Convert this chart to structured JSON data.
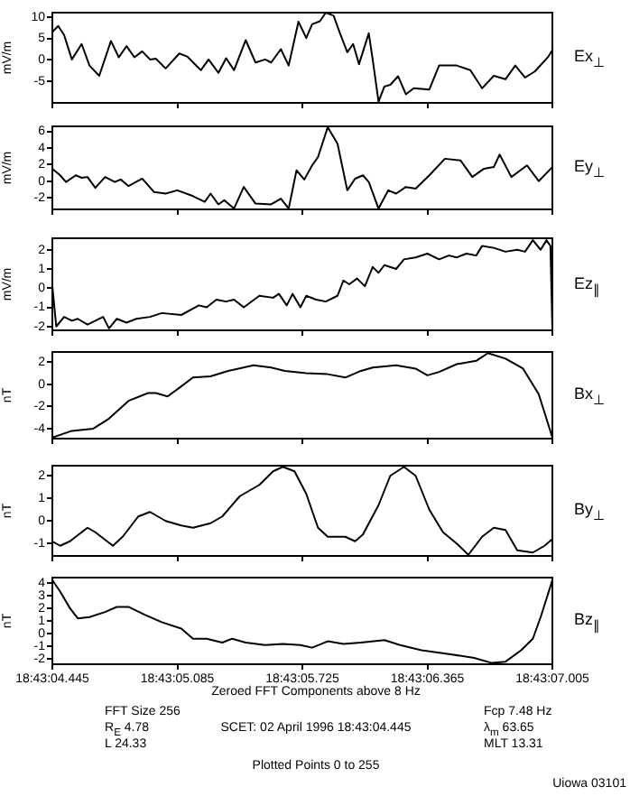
{
  "chart_data": [
    {
      "type": "line",
      "ylabel": "mV/m",
      "marker": "none",
      "tick_labels": "y",
      "xlim": [
        "1996-04-02T18:43:04.445",
        "1996-04-02T18:43:07.005"
      ],
      "xticks": [
        "1996-04-02T18:43:04.445",
        "1996-04-02T18:43:05.085",
        "1996-04-02T18:43:05.725",
        "1996-04-02T18:43:06.365",
        "1996-04-02T18:43:07.005"
      ],
      "ylim": [
        -10,
        11
      ],
      "yticks": [
        -5,
        0,
        5,
        10
      ],
      "x": [
        "1996-04-02T18:43:04.445",
        "1996-04-02T18:43:04.475",
        "1996-04-02T18:43:04.505",
        "1996-04-02T18:43:04.545",
        "1996-04-02T18:43:04.595",
        "1996-04-02T18:43:04.635",
        "1996-04-02T18:43:04.685",
        "1996-04-02T18:43:04.745",
        "1996-04-02T18:43:04.785",
        "1996-04-02T18:43:04.825",
        "1996-04-02T18:43:04.865",
        "1996-04-02T18:43:04.905",
        "1996-04-02T18:43:04.945",
        "1996-04-02T18:43:04.975",
        "1996-04-02T18:43:05.025",
        "1996-04-02T18:43:05.095",
        "1996-04-02T18:43:05.135",
        "1996-04-02T18:43:05.205",
        "1996-04-02T18:43:05.245",
        "1996-04-02T18:43:05.295",
        "1996-04-02T18:43:05.335",
        "1996-04-02T18:43:05.375",
        "1996-04-02T18:43:05.435",
        "1996-04-02T18:43:05.485",
        "1996-04-02T18:43:05.535",
        "1996-04-02T18:43:05.565",
        "1996-04-02T18:43:05.615",
        "1996-04-02T18:43:05.655",
        "1996-04-02T18:43:05.705",
        "1996-04-02T18:43:05.745",
        "1996-04-02T18:43:05.775",
        "1996-04-02T18:43:05.815",
        "1996-04-02T18:43:05.845",
        "1996-04-02T18:43:05.885",
        "1996-04-02T18:43:05.915",
        "1996-04-02T18:43:05.955",
        "1996-04-02T18:43:05.985",
        "1996-04-02T18:43:06.015",
        "1996-04-02T18:43:06.065",
        "1996-04-02T18:43:06.085",
        "1996-04-02T18:43:06.115",
        "1996-04-02T18:43:06.145",
        "1996-04-02T18:43:06.175",
        "1996-04-02T18:43:06.215",
        "1996-04-02T18:43:06.255",
        "1996-04-02T18:43:06.295",
        "1996-04-02T18:43:06.375",
        "1996-04-02T18:43:06.425",
        "1996-04-02T18:43:06.515",
        "1996-04-02T18:43:06.585",
        "1996-04-02T18:43:06.645",
        "1996-04-02T18:43:06.705",
        "1996-04-02T18:43:06.765",
        "1996-04-02T18:43:06.815",
        "1996-04-02T18:43:06.865",
        "1996-04-02T18:43:06.915",
        "1996-04-02T18:43:06.985",
        "1996-04-02T18:43:07.005"
      ],
      "series": [
        {
          "name": "Ex$_{⊥}$",
          "color": "#000000",
          "values": [
            6.5,
            7.9,
            5.8,
            0.1,
            3.7,
            -1.3,
            -3.7,
            4.4,
            0.6,
            3.2,
            0.6,
            2.0,
            0.1,
            0.3,
            -2.0,
            1.5,
            0.8,
            -2.4,
            0.1,
            -3.0,
            0.4,
            -2.4,
            4.6,
            -0.6,
            0.1,
            -0.6,
            2.5,
            -1.3,
            8.9,
            5.1,
            8.3,
            9.0,
            11.0,
            10.3,
            6.5,
            1.8,
            3.7,
            -1.0,
            6.2,
            0.1,
            -9.7,
            -6.2,
            -5.8,
            -3.8,
            -8.0,
            -6.6,
            -6.9,
            -1.3,
            -1.3,
            -2.4,
            -6.6,
            -3.7,
            -4.5,
            -1.3,
            -4.1,
            -2.7,
            0.8,
            2.3
          ]
        }
      ]
    },
    {
      "type": "line",
      "ylabel": "mV/m",
      "marker": "none",
      "tick_labels": "y",
      "xlim": [
        "1996-04-02T18:43:04.445",
        "1996-04-02T18:43:07.005"
      ],
      "xticks": [
        "1996-04-02T18:43:04.445",
        "1996-04-02T18:43:05.085",
        "1996-04-02T18:43:05.725",
        "1996-04-02T18:43:06.365",
        "1996-04-02T18:43:07.005"
      ],
      "ylim": [
        -3.4,
        6.6
      ],
      "yticks": [
        -2,
        0,
        2,
        4,
        6
      ],
      "x": [
        "1996-04-02T18:43:04.445",
        "1996-04-02T18:43:04.485",
        "1996-04-02T18:43:04.515",
        "1996-04-02T18:43:04.565",
        "1996-04-02T18:43:04.595",
        "1996-04-02T18:43:04.625",
        "1996-04-02T18:43:04.665",
        "1996-04-02T18:43:04.715",
        "1996-04-02T18:43:04.765",
        "1996-04-02T18:43:04.795",
        "1996-04-02T18:43:04.835",
        "1996-04-02T18:43:04.905",
        "1996-04-02T18:43:04.965",
        "1996-04-02T18:43:05.025",
        "1996-04-02T18:43:05.085",
        "1996-04-02T18:43:05.165",
        "1996-04-02T18:43:05.225",
        "1996-04-02T18:43:05.255",
        "1996-04-02T18:43:05.295",
        "1996-04-02T18:43:05.325",
        "1996-04-02T18:43:05.375",
        "1996-04-02T18:43:05.425",
        "1996-04-02T18:43:05.485",
        "1996-04-02T18:43:05.565",
        "1996-04-02T18:43:05.615",
        "1996-04-02T18:43:05.655",
        "1996-04-02T18:43:05.695",
        "1996-04-02T18:43:05.735",
        "1996-04-02T18:43:05.775",
        "1996-04-02T18:43:05.805",
        "1996-04-02T18:43:05.855",
        "1996-04-02T18:43:05.905",
        "1996-04-02T18:43:05.955",
        "1996-04-02T18:43:05.995",
        "1996-04-02T18:43:06.035",
        "1996-04-02T18:43:06.065",
        "1996-04-02T18:43:06.115",
        "1996-04-02T18:43:06.165",
        "1996-04-02T18:43:06.205",
        "1996-04-02T18:43:06.255",
        "1996-04-02T18:43:06.305",
        "1996-04-02T18:43:06.375",
        "1996-04-02T18:43:06.455",
        "1996-04-02T18:43:06.535",
        "1996-04-02T18:43:06.595",
        "1996-04-02T18:43:06.655",
        "1996-04-02T18:43:06.705",
        "1996-04-02T18:43:06.735",
        "1996-04-02T18:43:06.795",
        "1996-04-02T18:43:06.875",
        "1996-04-02T18:43:06.935",
        "1996-04-02T18:43:07.005"
      ],
      "series": [
        {
          "name": "Ey$_{⊥}$",
          "color": "#000000",
          "values": [
            1.5,
            0.7,
            -0.1,
            0.7,
            0.4,
            0.5,
            -0.8,
            0.5,
            -0.1,
            0.2,
            -0.6,
            0.3,
            -1.3,
            -1.5,
            -1.1,
            -1.8,
            -2.5,
            -1.5,
            -2.8,
            -2.3,
            -3.3,
            -0.7,
            -2.7,
            -2.8,
            -2.1,
            -3.3,
            1.3,
            0.2,
            1.9,
            2.9,
            6.5,
            4.5,
            -1.1,
            0.3,
            0.7,
            -0.1,
            -3.3,
            -1.1,
            -1.5,
            -0.7,
            -0.9,
            0.7,
            2.7,
            2.5,
            0.5,
            1.5,
            1.7,
            3.2,
            0.5,
            1.9,
            0,
            1.7
          ]
        }
      ]
    },
    {
      "type": "line",
      "ylabel": "mV/m",
      "marker": "none",
      "tick_labels": "y",
      "xlim": [
        "1996-04-02T18:43:04.445",
        "1996-04-02T18:43:07.005"
      ],
      "xticks": [
        "1996-04-02T18:43:04.445",
        "1996-04-02T18:43:05.085",
        "1996-04-02T18:43:05.725",
        "1996-04-02T18:43:06.365",
        "1996-04-02T18:43:07.005"
      ],
      "ylim": [
        -2.2,
        2.6
      ],
      "yticks": [
        -2,
        -1,
        0,
        1,
        2
      ],
      "x": [
        "1996-04-02T18:43:04.445",
        "1996-04-02T18:43:04.465",
        "1996-04-02T18:43:04.505",
        "1996-04-02T18:43:04.545",
        "1996-04-02T18:43:04.575",
        "1996-04-02T18:43:04.625",
        "1996-04-02T18:43:04.705",
        "1996-04-02T18:43:04.735",
        "1996-04-02T18:43:04.775",
        "1996-04-02T18:43:04.825",
        "1996-04-02T18:43:04.875",
        "1996-04-02T18:43:04.945",
        "1996-04-02T18:43:05.005",
        "1996-04-02T18:43:05.105",
        "1996-04-02T18:43:05.195",
        "1996-04-02T18:43:05.235",
        "1996-04-02T18:43:05.285",
        "1996-04-02T18:43:05.335",
        "1996-04-02T18:43:05.375",
        "1996-04-02T18:43:05.425",
        "1996-04-02T18:43:05.505",
        "1996-04-02T18:43:05.575",
        "1996-04-02T18:43:05.605",
        "1996-04-02T18:43:05.645",
        "1996-04-02T18:43:05.675",
        "1996-04-02T18:43:05.715",
        "1996-04-02T18:43:05.745",
        "1996-04-02T18:43:05.795",
        "1996-04-02T18:43:05.845",
        "1996-04-02T18:43:05.905",
        "1996-04-02T18:43:05.935",
        "1996-04-02T18:43:05.965",
        "1996-04-02T18:43:06.005",
        "1996-04-02T18:43:06.045",
        "1996-04-02T18:43:06.085",
        "1996-04-02T18:43:06.115",
        "1996-04-02T18:43:06.145",
        "1996-04-02T18:43:06.205",
        "1996-04-02T18:43:06.245",
        "1996-04-02T18:43:06.305",
        "1996-04-02T18:43:06.365",
        "1996-04-02T18:43:06.425",
        "1996-04-02T18:43:06.475",
        "1996-04-02T18:43:06.515",
        "1996-04-02T18:43:06.565",
        "1996-04-02T18:43:06.615",
        "1996-04-02T18:43:06.645",
        "1996-04-02T18:43:06.705",
        "1996-04-02T18:43:06.765",
        "1996-04-02T18:43:06.825",
        "1996-04-02T18:43:06.865",
        "1996-04-02T18:43:06.905",
        "1996-04-02T18:43:06.945",
        "1996-04-02T18:43:06.975",
        "1996-04-02T18:43:06.995",
        "1996-04-02T18:43:07.005"
      ],
      "series": [
        {
          "name": "Ez$_{∥}$",
          "color": "#000000",
          "values": [
            0.1,
            -2.0,
            -1.5,
            -1.7,
            -1.6,
            -1.9,
            -1.5,
            -2.1,
            -1.6,
            -1.8,
            -1.6,
            -1.5,
            -1.3,
            -1.4,
            -0.9,
            -1.0,
            -0.6,
            -0.7,
            -0.6,
            -1.0,
            -0.4,
            -0.5,
            -0.3,
            -0.9,
            -0.3,
            -1.0,
            -0.4,
            -0.6,
            -0.7,
            -0.4,
            0.4,
            0.2,
            0.5,
            0.1,
            1.1,
            0.8,
            1.2,
            1.0,
            1.5,
            1.6,
            1.8,
            1.5,
            1.7,
            1.6,
            1.8,
            1.7,
            2.2,
            2.1,
            1.9,
            2.0,
            1.9,
            2.5,
            2.0,
            2.5,
            2.2,
            -2.1
          ]
        }
      ]
    },
    {
      "type": "line",
      "ylabel": "nT",
      "marker": "none",
      "tick_labels": "y",
      "xlim": [
        "1996-04-02T18:43:04.445",
        "1996-04-02T18:43:07.005"
      ],
      "xticks": [
        "1996-04-02T18:43:04.445",
        "1996-04-02T18:43:05.085",
        "1996-04-02T18:43:05.725",
        "1996-04-02T18:43:06.365",
        "1996-04-02T18:43:07.005"
      ],
      "ylim": [
        -4.9,
        2.9
      ],
      "yticks": [
        -4,
        -2,
        0,
        2
      ],
      "x": [
        "1996-04-02T18:43:04.445",
        "1996-04-02T18:43:04.545",
        "1996-04-02T18:43:04.655",
        "1996-04-02T18:43:04.735",
        "1996-04-02T18:43:04.835",
        "1996-04-02T18:43:04.935",
        "1996-04-02T18:43:04.975",
        "1996-04-02T18:43:05.035",
        "1996-04-02T18:43:05.105",
        "1996-04-02T18:43:05.165",
        "1996-04-02T18:43:05.255",
        "1996-04-02T18:43:05.345",
        "1996-04-02T18:43:05.475",
        "1996-04-02T18:43:05.565",
        "1996-04-02T18:43:05.635",
        "1996-04-02T18:43:05.745",
        "1996-04-02T18:43:05.855",
        "1996-04-02T18:43:05.945",
        "1996-04-02T18:43:06.025",
        "1996-04-02T18:43:06.085",
        "1996-04-02T18:43:06.205",
        "1996-04-02T18:43:06.305",
        "1996-04-02T18:43:06.365",
        "1996-04-02T18:43:06.425",
        "1996-04-02T18:43:06.515",
        "1996-04-02T18:43:06.615",
        "1996-04-02T18:43:06.675",
        "1996-04-02T18:43:06.765",
        "1996-04-02T18:43:06.855",
        "1996-04-02T18:43:06.935",
        "1996-04-02T18:43:07.005"
      ],
      "series": [
        {
          "name": "Bx$_{⊥}$",
          "color": "#000000",
          "values": [
            -4.8,
            -4.2,
            -4.0,
            -3.1,
            -1.5,
            -0.8,
            -0.8,
            -1.1,
            -0.2,
            0.6,
            0.7,
            1.2,
            1.7,
            1.5,
            1.2,
            1.0,
            0.9,
            0.6,
            1.2,
            1.5,
            1.7,
            1.4,
            0.8,
            1.1,
            1.8,
            2.1,
            2.8,
            2.3,
            1.4,
            -0.9,
            -4.8
          ]
        }
      ]
    },
    {
      "type": "line",
      "ylabel": "nT",
      "marker": "none",
      "tick_labels": "y",
      "xlim": [
        "1996-04-02T18:43:04.445",
        "1996-04-02T18:43:07.005"
      ],
      "xticks": [
        "1996-04-02T18:43:04.445",
        "1996-04-02T18:43:05.085",
        "1996-04-02T18:43:05.725",
        "1996-04-02T18:43:06.365",
        "1996-04-02T18:43:07.005"
      ],
      "ylim": [
        -1.55,
        2.45
      ],
      "yticks": [
        -1,
        0,
        1,
        2
      ],
      "x": [
        "1996-04-02T18:43:04.445",
        "1996-04-02T18:43:04.485",
        "1996-04-02T18:43:04.535",
        "1996-04-02T18:43:04.625",
        "1996-04-02T18:43:04.665",
        "1996-04-02T18:43:04.755",
        "1996-04-02T18:43:04.805",
        "1996-04-02T18:43:04.885",
        "1996-04-02T18:43:04.945",
        "1996-04-02T18:43:05.025",
        "1996-04-02T18:43:05.105",
        "1996-04-02T18:43:05.165",
        "1996-04-02T18:43:05.255",
        "1996-04-02T18:43:05.315",
        "1996-04-02T18:43:05.405",
        "1996-04-02T18:43:05.505",
        "1996-04-02T18:43:05.575",
        "1996-04-02T18:43:05.625",
        "1996-04-02T18:43:05.685",
        "1996-04-02T18:43:05.745",
        "1996-04-02T18:43:05.805",
        "1996-04-02T18:43:05.855",
        "1996-04-02T18:43:05.905",
        "1996-04-02T18:43:05.945",
        "1996-04-02T18:43:05.995",
        "1996-04-02T18:43:06.035",
        "1996-04-02T18:43:06.115",
        "1996-04-02T18:43:06.175",
        "1996-04-02T18:43:06.245",
        "1996-04-02T18:43:06.305",
        "1996-04-02T18:43:06.375",
        "1996-04-02T18:43:06.445",
        "1996-04-02T18:43:06.515",
        "1996-04-02T18:43:06.575",
        "1996-04-02T18:43:06.645",
        "1996-04-02T18:43:06.705",
        "1996-04-02T18:43:06.765",
        "1996-04-02T18:43:06.825",
        "1996-04-02T18:43:06.905",
        "1996-04-02T18:43:06.965",
        "1996-04-02T18:43:07.005"
      ],
      "series": [
        {
          "name": "By$_{⊥}$",
          "color": "#000000",
          "values": [
            -0.9,
            -1.1,
            -0.9,
            -0.3,
            -0.5,
            -1.1,
            -0.7,
            0.2,
            0.4,
            0,
            -0.2,
            -0.3,
            -0.1,
            0.2,
            1.1,
            1.6,
            2.2,
            2.4,
            2.2,
            1.2,
            -0.3,
            -0.7,
            -0.7,
            -0.7,
            -0.9,
            -0.6,
            0.7,
            2.0,
            2.4,
            2.0,
            0.5,
            -0.5,
            -1.0,
            -1.5,
            -0.7,
            -0.3,
            -0.4,
            -1.3,
            -1.4,
            -1.1,
            -0.8
          ]
        }
      ]
    },
    {
      "type": "line",
      "ylabel": "nT",
      "marker": "none",
      "xlim": [
        "1996-04-02T18:43:04.445",
        "1996-04-02T18:43:07.005"
      ],
      "xticks": [
        {
          "value": "1996-04-02T18:43:04.445",
          "label": "18:43:04.445"
        },
        {
          "value": "1996-04-02T18:43:05.085",
          "label": "18:43:05.085"
        },
        {
          "value": "1996-04-02T18:43:05.725",
          "label": "18:43:05.725"
        },
        {
          "value": "1996-04-02T18:43:06.365",
          "label": "18:43:06.365"
        },
        {
          "value": "1996-04-02T18:43:07.005",
          "label": "18:43:07.005"
        }
      ],
      "ylim": [
        -2.4,
        4.4
      ],
      "yticks": [
        -2,
        -1,
        0,
        1,
        2,
        3,
        4
      ],
      "x": [
        "1996-04-02T18:43:04.445",
        "1996-04-02T18:43:04.485",
        "1996-04-02T18:43:04.535",
        "1996-04-02T18:43:04.575",
        "1996-04-02T18:43:04.635",
        "1996-04-02T18:43:04.715",
        "1996-04-02T18:43:04.775",
        "1996-04-02T18:43:04.835",
        "1996-04-02T18:43:04.915",
        "1996-04-02T18:43:05.005",
        "1996-04-02T18:43:05.105",
        "1996-04-02T18:43:05.165",
        "1996-04-02T18:43:05.235",
        "1996-04-02T18:43:05.315",
        "1996-04-02T18:43:05.365",
        "1996-04-02T18:43:05.435",
        "1996-04-02T18:43:05.535",
        "1996-04-02T18:43:05.625",
        "1996-04-02T18:43:05.715",
        "1996-04-02T18:43:05.775",
        "1996-04-02T18:43:05.855",
        "1996-04-02T18:43:05.935",
        "1996-04-02T18:43:06.025",
        "1996-04-02T18:43:06.145",
        "1996-04-02T18:43:06.225",
        "1996-04-02T18:43:06.335",
        "1996-04-02T18:43:06.475",
        "1996-04-02T18:43:06.605",
        "1996-04-02T18:43:06.695",
        "1996-04-02T18:43:06.765",
        "1996-04-02T18:43:06.845",
        "1996-04-02T18:43:06.905",
        "1996-04-02T18:43:06.945",
        "1996-04-02T18:43:07.005"
      ],
      "series": [
        {
          "name": "Bz$_{∥}$",
          "color": "#000000",
          "values": [
            4.2,
            3.3,
            2.0,
            1.2,
            1.3,
            1.7,
            2.1,
            2.1,
            1.5,
            0.9,
            0.4,
            -0.4,
            -0.4,
            -0.7,
            -0.4,
            -0.7,
            -0.9,
            -0.8,
            -0.9,
            -1.1,
            -0.6,
            -0.8,
            -0.7,
            -0.5,
            -0.9,
            -1.3,
            -1.6,
            -1.9,
            -2.3,
            -2.2,
            -1.3,
            -0.4,
            1.3,
            4.2
          ]
        }
      ],
      "annotations": [
        "Zeroed FFT Components above 8 Hz",
        "FFT Size 256",
        "R$_{E}$ 4.78",
        "L 24.33",
        "SCET: 02 April 1996 18:43:04.445",
        "Fcp 7.48 Hz",
        "λ$_{m}$ 63.65",
        "MLT 13.31",
        "Plotted Points 0 to 255",
        "Uiowa 03101"
      ]
    }
  ]
}
